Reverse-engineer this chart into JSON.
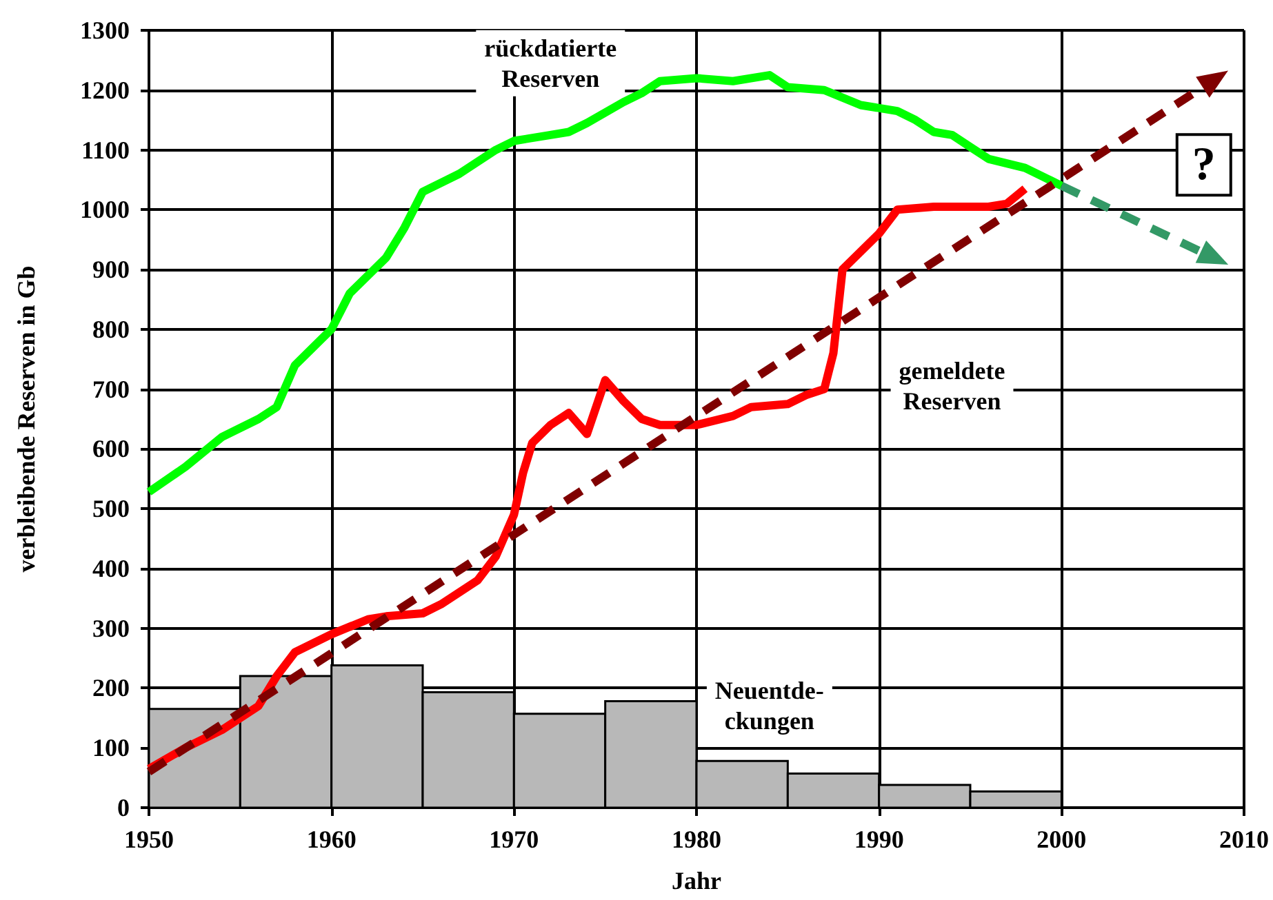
{
  "chart_data": {
    "type": "line",
    "xlabel": "Jahr",
    "ylabel": "verbleibende Reserven in Gb",
    "xlim": [
      1950,
      2010
    ],
    "xticks": [
      1950,
      1960,
      1970,
      1980,
      1990,
      2000,
      2010
    ],
    "ylim": [
      0,
      1300
    ],
    "yticks": [
      0,
      100,
      200,
      300,
      400,
      500,
      600,
      700,
      800,
      900,
      1000,
      1100,
      1200,
      1300
    ],
    "grid": true,
    "marker": "none",
    "annotations": [
      "?"
    ],
    "series": [
      {
        "type": "histogram",
        "name": "Neuentde-ckungen",
        "color": "#b8b8b8",
        "bins": [
          1950,
          1955,
          1960,
          1965,
          1970,
          1975,
          1980,
          1985,
          1990,
          1995,
          2000
        ],
        "values": [
          165,
          220,
          238,
          193,
          157,
          178,
          78,
          57,
          38,
          27
        ]
      },
      {
        "name": "rückdatierte Reserven",
        "color": "#00ff00",
        "x": [
          1950,
          1952,
          1954,
          1956,
          1957,
          1958,
          1960,
          1961,
          1962,
          1963,
          1964,
          1965,
          1967,
          1969,
          1970,
          1972,
          1973,
          1974,
          1976,
          1977,
          1978,
          1980,
          1982,
          1984,
          1985,
          1987,
          1989,
          1991,
          1992,
          1993,
          1994,
          1995,
          1996,
          1998,
          2000
        ],
        "values": [
          528,
          570,
          620,
          650,
          670,
          740,
          800,
          860,
          890,
          920,
          970,
          1030,
          1060,
          1100,
          1115,
          1125,
          1130,
          1145,
          1180,
          1195,
          1215,
          1220,
          1215,
          1225,
          1205,
          1200,
          1175,
          1165,
          1150,
          1130,
          1125,
          1105,
          1085,
          1070,
          1040
        ]
      },
      {
        "name": "gemeldete Reserven",
        "color": "#ff0000",
        "x": [
          1950,
          1952,
          1954,
          1956,
          1957,
          1958,
          1960,
          1962,
          1963,
          1965,
          1966,
          1968,
          1969,
          1970,
          1970.5,
          1971,
          1972,
          1973,
          1974,
          1975,
          1976,
          1977,
          1978,
          1980,
          1982,
          1983,
          1985,
          1986,
          1987,
          1987.5,
          1988,
          1989,
          1990,
          1991,
          1993,
          1996,
          1997,
          1998
        ],
        "values": [
          65,
          100,
          130,
          170,
          220,
          260,
          290,
          315,
          320,
          325,
          340,
          380,
          420,
          490,
          560,
          610,
          640,
          660,
          625,
          715,
          680,
          650,
          640,
          640,
          655,
          670,
          675,
          690,
          700,
          760,
          900,
          930,
          960,
          1000,
          1005,
          1005,
          1010,
          1035
        ]
      }
    ]
  }
}
